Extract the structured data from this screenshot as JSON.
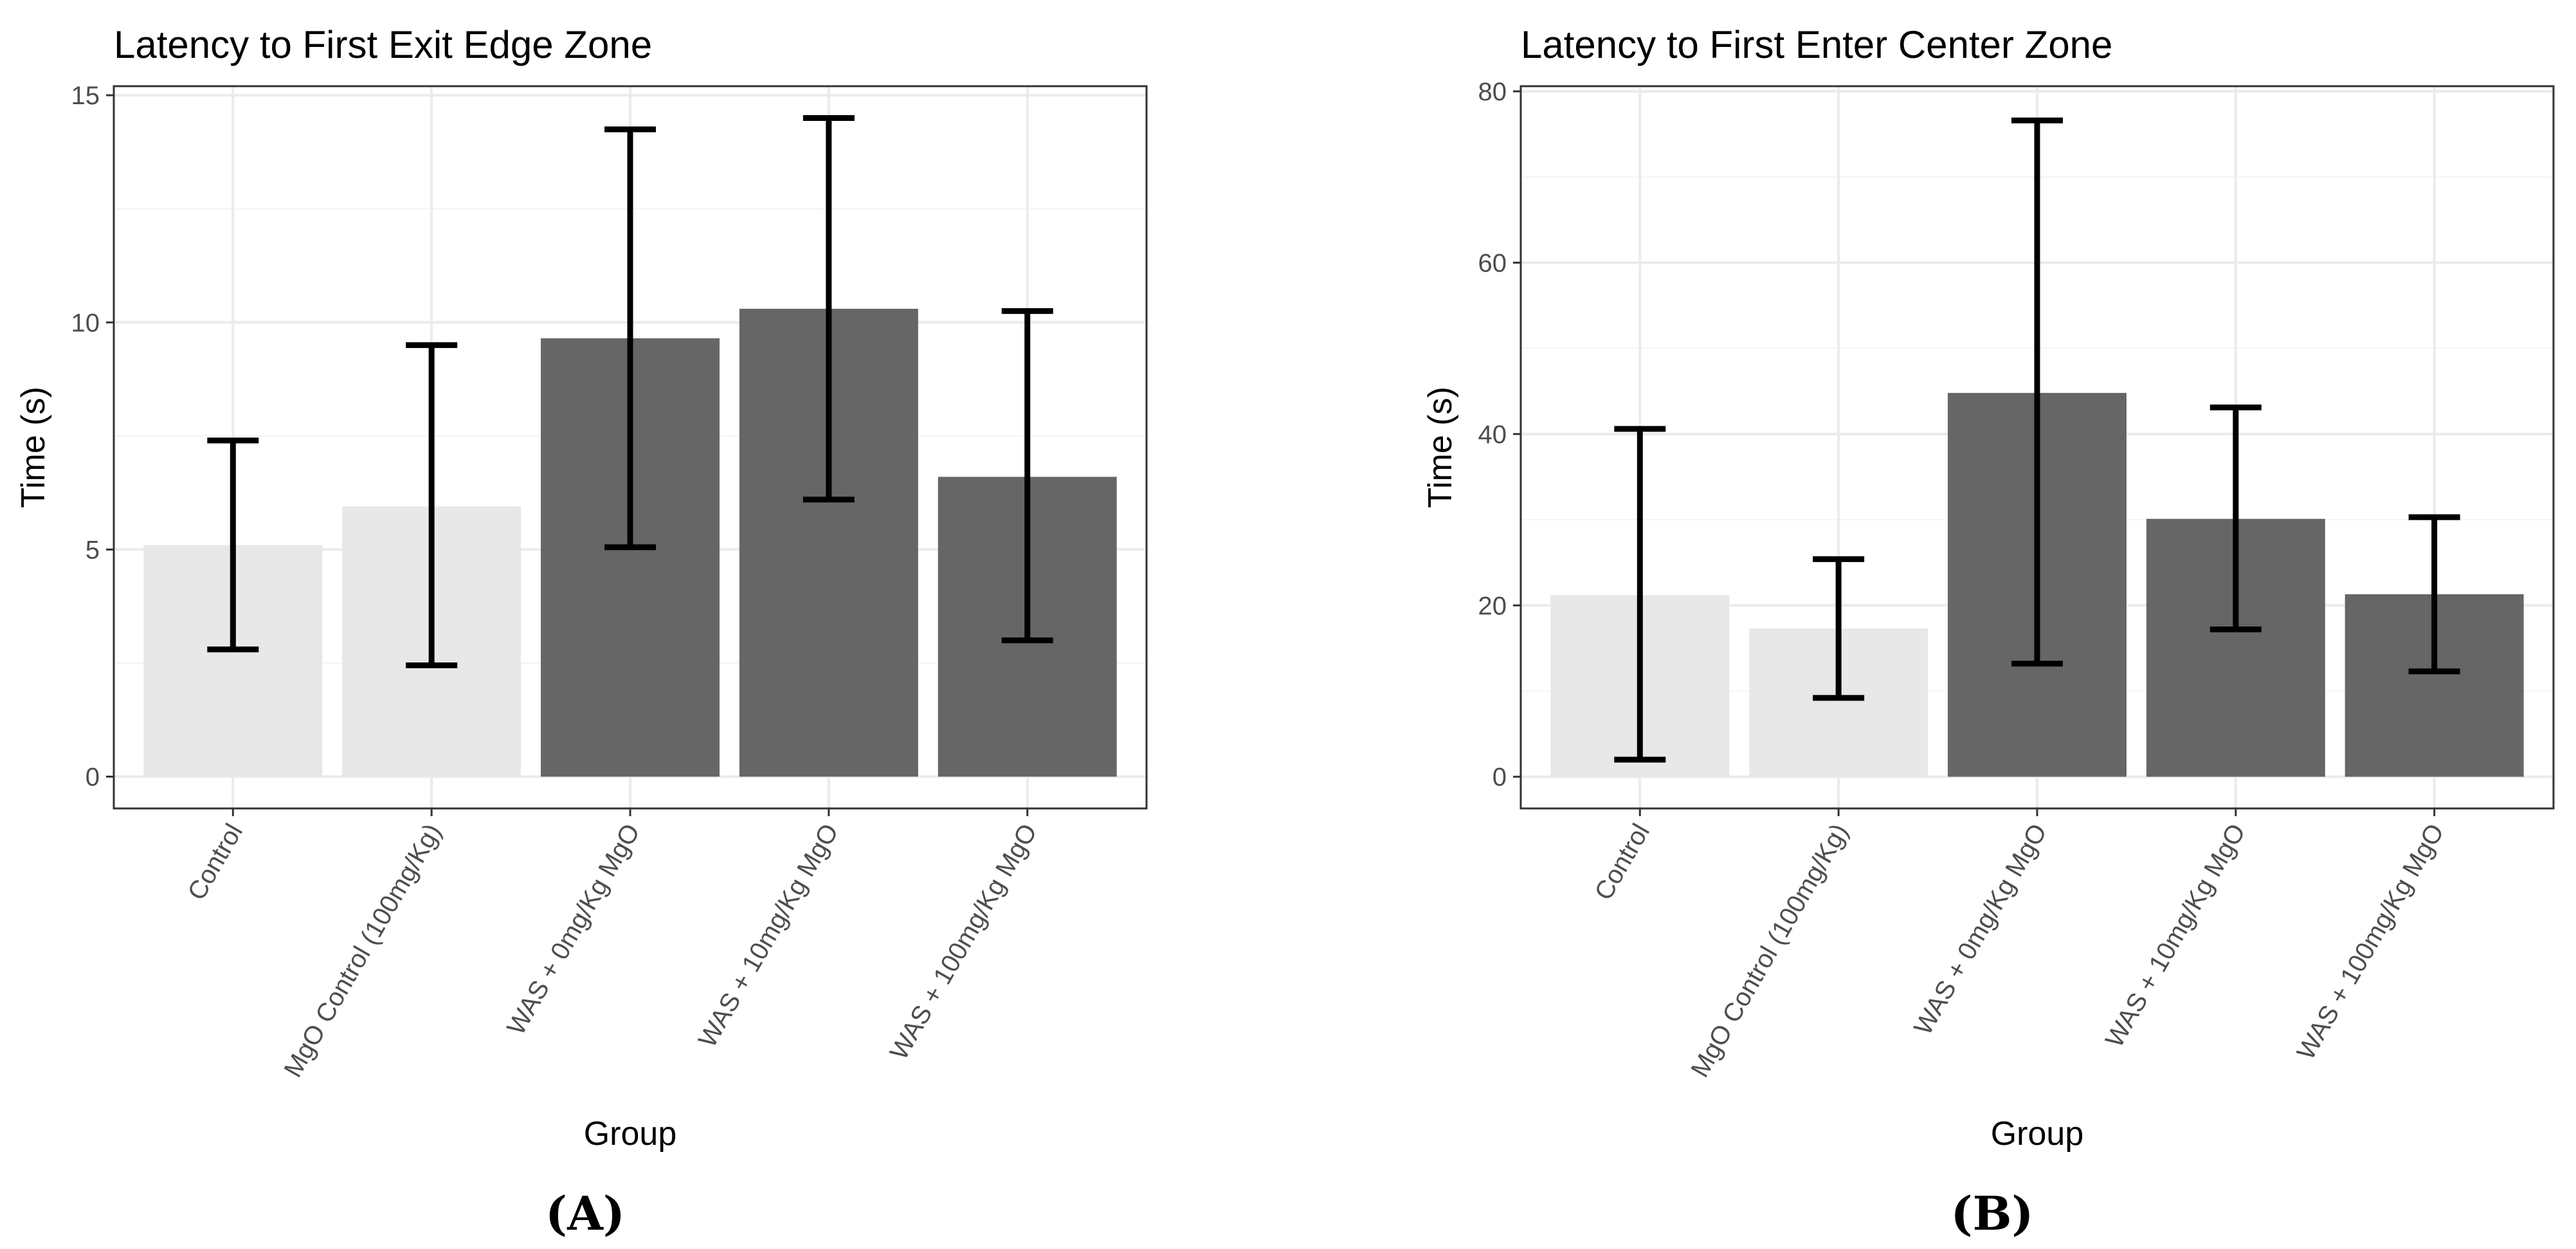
{
  "chart_data": [
    {
      "type": "bar",
      "panel_letter": "(A)",
      "title": "Latency to First Exit Edge Zone",
      "xlabel": "Group",
      "ylabel": "Time (s)",
      "ylim": [
        -0.7,
        15.2
      ],
      "yticks": [
        0,
        5,
        10,
        15
      ],
      "grid": true,
      "categories": [
        "Control",
        "MgO Control (100mg/Kg)",
        "WAS + 0mg/Kg MgO",
        "WAS + 10mg/Kg MgO",
        "WAS + 100mg/Kg MgO"
      ],
      "values": [
        5.1,
        5.95,
        9.65,
        10.3,
        6.6
      ],
      "error_low": [
        2.8,
        2.45,
        5.05,
        6.1,
        3.0
      ],
      "error_high": [
        7.4,
        9.5,
        14.25,
        14.5,
        10.25
      ],
      "bar_colors": [
        "#e8e8e8",
        "#e8e8e8",
        "#666666",
        "#666666",
        "#666666"
      ]
    },
    {
      "type": "bar",
      "panel_letter": "(B)",
      "title": "Latency to First Enter Center Zone",
      "xlabel": "Group",
      "ylabel": "Time (s)",
      "ylim": [
        -3.7,
        80.6
      ],
      "yticks": [
        0,
        20,
        40,
        60,
        80
      ],
      "grid": true,
      "categories": [
        "Control",
        "MgO Control (100mg/Kg)",
        "WAS + 0mg/Kg MgO",
        "WAS + 10mg/Kg MgO",
        "WAS + 100mg/Kg MgO"
      ],
      "values": [
        21.2,
        17.3,
        44.8,
        30.1,
        21.3
      ],
      "error_low": [
        2.0,
        9.2,
        13.2,
        17.2,
        12.3
      ],
      "error_high": [
        40.6,
        25.4,
        76.6,
        43.1,
        30.3
      ],
      "bar_colors": [
        "#e8e8e8",
        "#e8e8e8",
        "#666666",
        "#666666",
        "#666666"
      ]
    }
  ]
}
